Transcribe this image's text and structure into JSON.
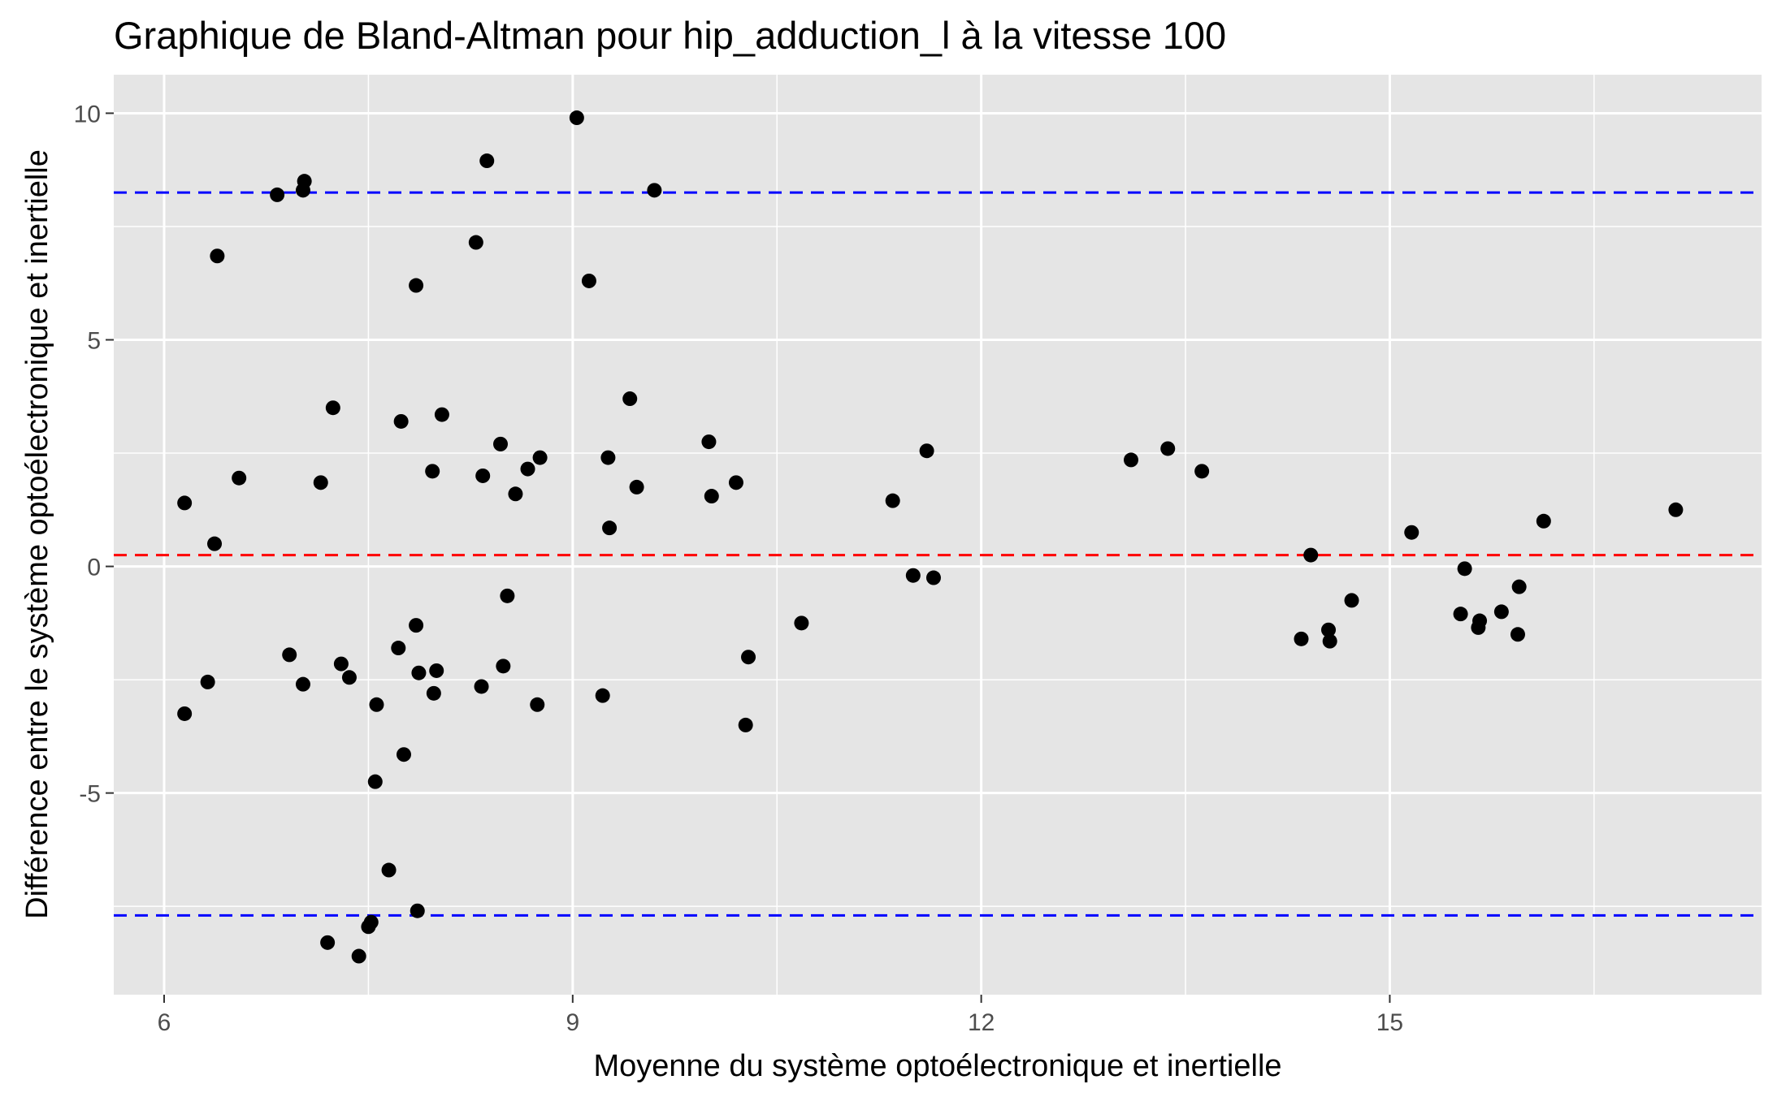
{
  "chart_data": {
    "type": "scatter",
    "title": "Graphique de Bland-Altman pour hip_adduction_l à la vitesse 100",
    "xlabel": "Moyenne du système optoélectronique et inertielle",
    "ylabel": "Différence entre le système optoélectronique et inertielle",
    "xlim": [
      5.63,
      17.73
    ],
    "ylim": [
      -9.45,
      10.85
    ],
    "x_ticks": [
      6,
      9,
      12,
      15
    ],
    "x_tick_labels": [
      "6",
      "9",
      "12",
      "15"
    ],
    "y_ticks": [
      -5,
      0,
      5,
      10
    ],
    "y_tick_labels": [
      "-5",
      "0",
      "5",
      "10"
    ],
    "grid": true,
    "background": "#e5e5e5",
    "point_color": "#000000",
    "reference_lines": [
      {
        "y": 8.25,
        "color": "#0000ff",
        "style": "dashed"
      },
      {
        "y": 0.25,
        "color": "#ff0000",
        "style": "dashed"
      },
      {
        "y": -7.7,
        "color": "#0000ff",
        "style": "dashed"
      }
    ],
    "points": [
      [
        6.15,
        1.4
      ],
      [
        6.15,
        -3.25
      ],
      [
        6.32,
        -2.55
      ],
      [
        6.37,
        0.5
      ],
      [
        6.39,
        6.85
      ],
      [
        6.55,
        1.95
      ],
      [
        6.83,
        8.2
      ],
      [
        6.92,
        -1.95
      ],
      [
        7.02,
        -2.6
      ],
      [
        7.02,
        8.3
      ],
      [
        7.03,
        8.5
      ],
      [
        7.15,
        1.85
      ],
      [
        7.2,
        -8.3
      ],
      [
        7.24,
        3.5
      ],
      [
        7.3,
        -2.15
      ],
      [
        7.36,
        -2.45
      ],
      [
        7.43,
        -8.6
      ],
      [
        7.5,
        -7.95
      ],
      [
        7.52,
        -7.85
      ],
      [
        7.55,
        -4.75
      ],
      [
        7.56,
        -3.05
      ],
      [
        7.65,
        -6.7
      ],
      [
        7.72,
        -1.8
      ],
      [
        7.74,
        3.2
      ],
      [
        7.76,
        -4.15
      ],
      [
        7.85,
        6.2
      ],
      [
        7.85,
        -1.3
      ],
      [
        7.86,
        -7.6
      ],
      [
        7.87,
        -2.35
      ],
      [
        7.97,
        2.1
      ],
      [
        7.98,
        -2.8
      ],
      [
        8.0,
        -2.3
      ],
      [
        8.04,
        3.35
      ],
      [
        8.29,
        7.15
      ],
      [
        8.33,
        -2.65
      ],
      [
        8.34,
        2.0
      ],
      [
        8.37,
        8.95
      ],
      [
        8.47,
        2.7
      ],
      [
        8.49,
        -2.2
      ],
      [
        8.52,
        -0.65
      ],
      [
        8.58,
        1.6
      ],
      [
        8.67,
        2.15
      ],
      [
        8.74,
        -3.05
      ],
      [
        8.76,
        2.4
      ],
      [
        9.03,
        9.9
      ],
      [
        9.12,
        6.3
      ],
      [
        9.22,
        -2.85
      ],
      [
        9.26,
        2.4
      ],
      [
        9.27,
        0.85
      ],
      [
        9.42,
        3.7
      ],
      [
        9.47,
        1.75
      ],
      [
        9.6,
        8.3
      ],
      [
        10.0,
        2.75
      ],
      [
        10.02,
        1.55
      ],
      [
        10.2,
        1.85
      ],
      [
        10.27,
        -3.5
      ],
      [
        10.29,
        -2.0
      ],
      [
        10.68,
        -1.25
      ],
      [
        11.35,
        1.45
      ],
      [
        11.5,
        -0.2
      ],
      [
        11.6,
        2.55
      ],
      [
        11.65,
        -0.25
      ],
      [
        13.1,
        2.35
      ],
      [
        13.37,
        2.6
      ],
      [
        13.62,
        2.1
      ],
      [
        14.35,
        -1.6
      ],
      [
        14.42,
        0.25
      ],
      [
        14.55,
        -1.4
      ],
      [
        14.56,
        -1.65
      ],
      [
        14.72,
        -0.75
      ],
      [
        15.16,
        0.75
      ],
      [
        15.52,
        -1.05
      ],
      [
        15.55,
        -0.05
      ],
      [
        15.65,
        -1.35
      ],
      [
        15.66,
        -1.2
      ],
      [
        15.82,
        -1.0
      ],
      [
        15.94,
        -1.5
      ],
      [
        15.95,
        -0.45
      ],
      [
        16.13,
        1.0
      ],
      [
        17.1,
        1.25
      ]
    ]
  }
}
